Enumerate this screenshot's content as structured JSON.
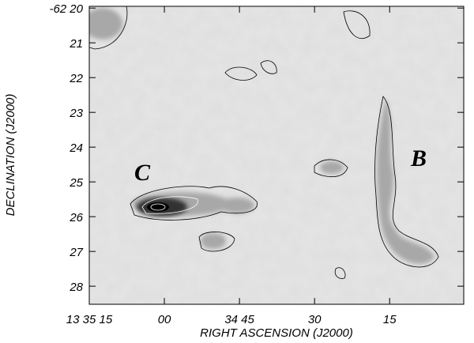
{
  "chart_data": {
    "type": "contour",
    "xlabel": "RIGHT ASCENSION (J2000)",
    "ylabel": "DECLINATION (J2000)",
    "xlim": [
      75,
      0.2
    ],
    "xticks": [
      {
        "value": 75,
        "label": "13 35 15"
      },
      {
        "value": 60,
        "label": "00"
      },
      {
        "value": 45,
        "label": "34 45"
      },
      30,
      15
    ],
    "ylim": [
      19.95,
      28.52
    ],
    "yticks": [
      {
        "value": 20,
        "label": "-62 20"
      },
      21,
      22,
      23,
      24,
      25,
      26,
      27,
      28
    ],
    "annotations": [
      "C",
      "B"
    ]
  }
}
